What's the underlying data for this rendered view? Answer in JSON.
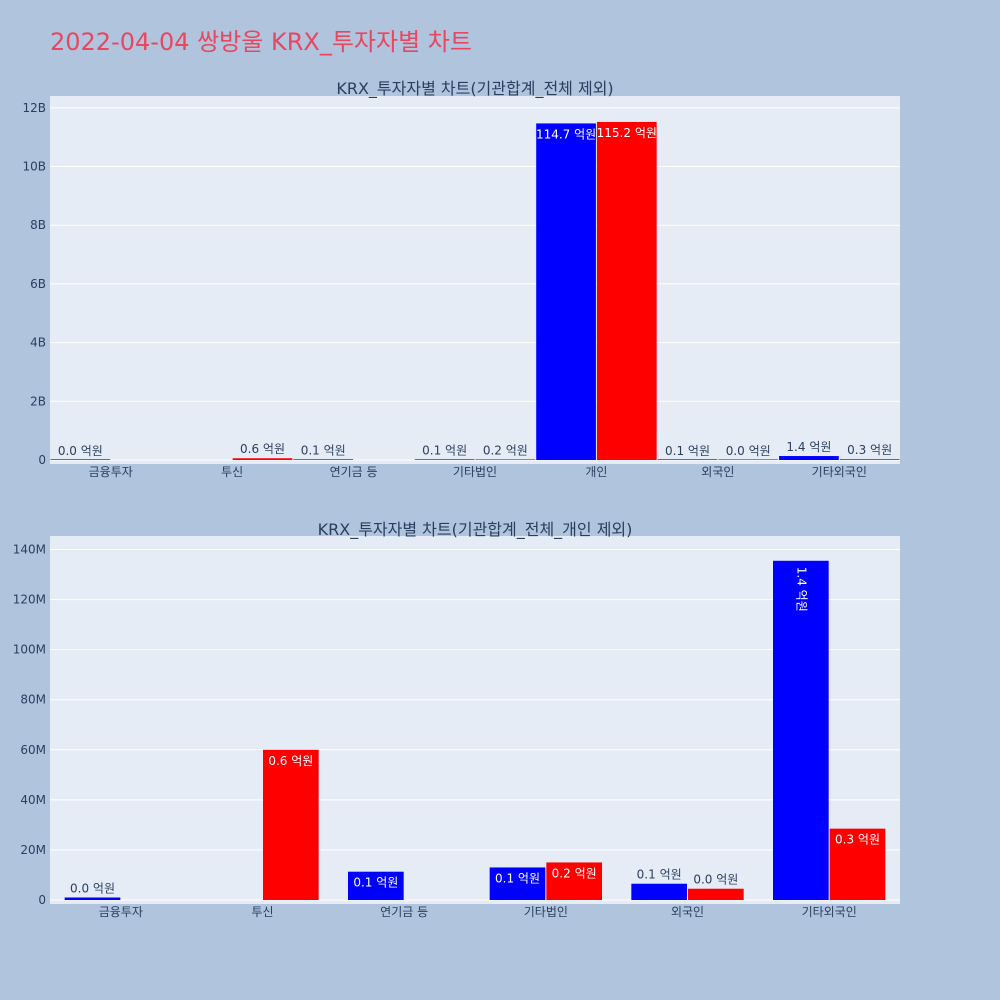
{
  "page": {
    "title": "2022-04-04 쌍방울 KRX_투자자별 차트",
    "background": "#b0c4de",
    "title_color": "#e8475f",
    "plot_background": "#e5ecf6"
  },
  "chart_data": [
    {
      "type": "bar",
      "title": "KRX_투자자별 차트(기관합계_전체 제외)",
      "categories": [
        "금융투자",
        "투신",
        "연기금 등",
        "기타법인",
        "개인",
        "외국인",
        "기타외국인"
      ],
      "ylim": [
        0,
        12200000000
      ],
      "yticks": [
        0,
        2000000000,
        4000000000,
        6000000000,
        8000000000,
        10000000000,
        12000000000
      ],
      "ytick_labels": [
        "0",
        "2B",
        "4B",
        "6B",
        "8B",
        "10B",
        "12B"
      ],
      "grid": true,
      "series": [
        {
          "color": "#0000ff",
          "values": [
            1000000,
            null,
            11000000,
            13000000,
            11470000000,
            6500000,
            135000000
          ],
          "labels": [
            "0.0 억원",
            "",
            "0.1 억원",
            "0.1 억원",
            "114.7 억원",
            "0.1 억원",
            "1.4 억원"
          ]
        },
        {
          "color": "#ff0000",
          "values": [
            null,
            60000000,
            null,
            15000000,
            11520000000,
            4500000,
            28000000
          ],
          "labels": [
            "",
            "0.6 억원",
            "",
            "0.2 억원",
            "115.2 억원",
            "0.0 억원",
            "0.3 억원"
          ]
        }
      ]
    },
    {
      "type": "bar",
      "title": "KRX_투자자별 차트(기관합계_전체_개인 제외)",
      "categories": [
        "금융투자",
        "투신",
        "연기금 등",
        "기타법인",
        "외국인",
        "기타외국인"
      ],
      "ylim": [
        0,
        143000000
      ],
      "yticks": [
        0,
        20000000,
        40000000,
        60000000,
        80000000,
        100000000,
        120000000,
        140000000
      ],
      "ytick_labels": [
        "0",
        "20M",
        "40M",
        "60M",
        "80M",
        "100M",
        "120M",
        "140M"
      ],
      "grid": true,
      "series": [
        {
          "color": "#0000ff",
          "values": [
            1000000,
            null,
            11300000,
            13000000,
            6500000,
            135500000
          ],
          "labels": [
            "0.0 억원",
            "",
            "0.1 억원",
            "0.1 억원",
            "0.1 억원",
            "1.4 억원"
          ]
        },
        {
          "color": "#ff0000",
          "values": [
            null,
            60000000,
            null,
            15000000,
            4500000,
            28500000
          ],
          "labels": [
            "",
            "0.6 억원",
            "",
            "0.2 억원",
            "0.0 억원",
            "0.3 억원"
          ]
        }
      ]
    }
  ]
}
